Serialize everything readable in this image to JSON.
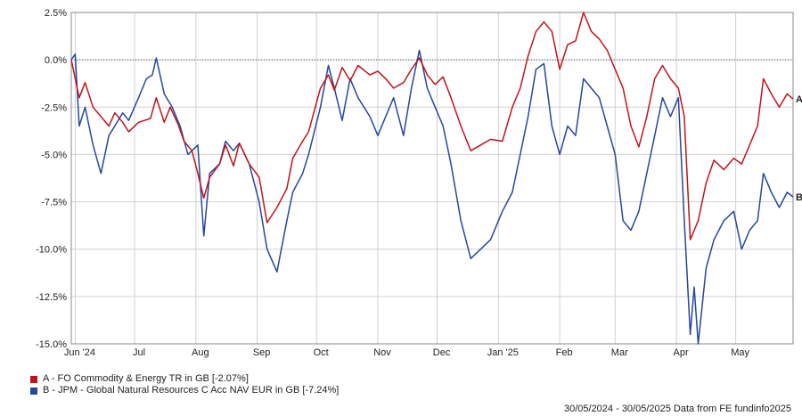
{
  "chart_data": {
    "type": "line",
    "title": "",
    "xlabel": "",
    "ylabel": "",
    "ylim": [
      -15,
      2.5
    ],
    "y_ticks": [
      "2.5%",
      "0.0%",
      "-2.5%",
      "-5.0%",
      "-7.5%",
      "-10.0%",
      "-12.5%",
      "-15.0%"
    ],
    "y_tick_values": [
      2.5,
      0,
      -2.5,
      -5,
      -7.5,
      -10,
      -12.5,
      -15
    ],
    "x_ticks": [
      "Jun '24",
      "Jul",
      "Aug",
      "Sep",
      "Oct",
      "Nov",
      "Dec",
      "Jan '25",
      "Feb",
      "Mar",
      "Apr",
      "May"
    ],
    "x_tick_dates": [
      "2024-06-01",
      "2024-07-01",
      "2024-08-01",
      "2024-09-01",
      "2024-10-01",
      "2024-11-01",
      "2024-12-01",
      "2025-01-01",
      "2025-02-01",
      "2025-03-01",
      "2025-04-01",
      "2025-05-01"
    ],
    "xlim": [
      "2024-05-30",
      "2025-05-30"
    ],
    "grid": true,
    "zero_line": true,
    "series": [
      {
        "name": "A - FO Commodity & Energy TR in GB [-2.07%]",
        "end_label": "A",
        "color": "#c0141c",
        "points": [
          [
            "2024-05-30",
            0
          ],
          [
            "2024-06-03",
            -2.0
          ],
          [
            "2024-06-06",
            -1.2
          ],
          [
            "2024-06-10",
            -2.5
          ],
          [
            "2024-06-14",
            -3.0
          ],
          [
            "2024-06-18",
            -3.5
          ],
          [
            "2024-06-21",
            -2.8
          ],
          [
            "2024-06-25",
            -3.3
          ],
          [
            "2024-06-28",
            -3.8
          ],
          [
            "2024-07-03",
            -3.3
          ],
          [
            "2024-07-09",
            -3.1
          ],
          [
            "2024-07-12",
            -2.0
          ],
          [
            "2024-07-16",
            -3.3
          ],
          [
            "2024-07-19",
            -2.5
          ],
          [
            "2024-07-23",
            -3.4
          ],
          [
            "2024-07-26",
            -4.3
          ],
          [
            "2024-07-30",
            -4.8
          ],
          [
            "2024-08-02",
            -6.0
          ],
          [
            "2024-08-05",
            -7.3
          ],
          [
            "2024-08-08",
            -6.2
          ],
          [
            "2024-08-13",
            -5.5
          ],
          [
            "2024-08-16",
            -4.5
          ],
          [
            "2024-08-20",
            -5.6
          ],
          [
            "2024-08-23",
            -4.4
          ],
          [
            "2024-08-28",
            -5.5
          ],
          [
            "2024-09-02",
            -6.2
          ],
          [
            "2024-09-06",
            -8.6
          ],
          [
            "2024-09-11",
            -7.8
          ],
          [
            "2024-09-16",
            -6.8
          ],
          [
            "2024-09-19",
            -5.2
          ],
          [
            "2024-09-24",
            -4.3
          ],
          [
            "2024-09-27",
            -3.8
          ],
          [
            "2024-10-03",
            -1.5
          ],
          [
            "2024-10-07",
            -0.8
          ],
          [
            "2024-10-10",
            -1.6
          ],
          [
            "2024-10-14",
            -0.4
          ],
          [
            "2024-10-18",
            -1.1
          ],
          [
            "2024-10-22",
            -0.3
          ],
          [
            "2024-10-28",
            -0.8
          ],
          [
            "2024-11-01",
            -0.6
          ],
          [
            "2024-11-05",
            -1.0
          ],
          [
            "2024-11-09",
            -1.5
          ],
          [
            "2024-11-14",
            -1.2
          ],
          [
            "2024-11-18",
            -0.5
          ],
          [
            "2024-11-22",
            0.1
          ],
          [
            "2024-11-26",
            -0.8
          ],
          [
            "2024-11-30",
            -1.3
          ],
          [
            "2024-12-04",
            -0.9
          ],
          [
            "2024-12-08",
            -2.0
          ],
          [
            "2024-12-13",
            -3.5
          ],
          [
            "2024-12-18",
            -4.8
          ],
          [
            "2024-12-23",
            -4.5
          ],
          [
            "2024-12-28",
            -4.2
          ],
          [
            "2025-01-03",
            -4.3
          ],
          [
            "2025-01-08",
            -2.5
          ],
          [
            "2025-01-12",
            -1.5
          ],
          [
            "2025-01-16",
            0.2
          ],
          [
            "2025-01-20",
            1.5
          ],
          [
            "2025-01-24",
            2.0
          ],
          [
            "2025-01-28",
            1.5
          ],
          [
            "2025-02-01",
            -0.5
          ],
          [
            "2025-02-05",
            0.8
          ],
          [
            "2025-02-09",
            1.0
          ],
          [
            "2025-02-13",
            2.5
          ],
          [
            "2025-02-17",
            1.5
          ],
          [
            "2025-02-21",
            1.1
          ],
          [
            "2025-02-25",
            0.5
          ],
          [
            "2025-03-01",
            -0.5
          ],
          [
            "2025-03-05",
            -1.5
          ],
          [
            "2025-03-09",
            -3.5
          ],
          [
            "2025-03-13",
            -4.6
          ],
          [
            "2025-03-17",
            -3.0
          ],
          [
            "2025-03-21",
            -1.0
          ],
          [
            "2025-03-25",
            -0.3
          ],
          [
            "2025-03-29",
            -1.0
          ],
          [
            "2025-04-02",
            -1.5
          ],
          [
            "2025-04-05",
            -3.0
          ],
          [
            "2025-04-08",
            -9.5
          ],
          [
            "2025-04-12",
            -8.5
          ],
          [
            "2025-04-16",
            -6.5
          ],
          [
            "2025-04-20",
            -5.3
          ],
          [
            "2025-04-25",
            -5.8
          ],
          [
            "2025-04-30",
            -5.2
          ],
          [
            "2025-05-04",
            -5.5
          ],
          [
            "2025-05-08",
            -4.5
          ],
          [
            "2025-05-12",
            -3.5
          ],
          [
            "2025-05-15",
            -1.0
          ],
          [
            "2025-05-19",
            -1.8
          ],
          [
            "2025-05-23",
            -2.5
          ],
          [
            "2025-05-27",
            -1.8
          ],
          [
            "2025-05-30",
            -2.07
          ]
        ]
      },
      {
        "name": "B - JPM - Global Natural Resources C Acc NAV EUR in GB [-7.24%]",
        "end_label": "B",
        "color": "#2447a0",
        "points": [
          [
            "2024-05-30",
            0
          ],
          [
            "2024-06-01",
            0.3
          ],
          [
            "2024-06-03",
            -3.5
          ],
          [
            "2024-06-06",
            -2.5
          ],
          [
            "2024-06-10",
            -4.5
          ],
          [
            "2024-06-14",
            -6.0
          ],
          [
            "2024-06-18",
            -4.0
          ],
          [
            "2024-06-21",
            -3.5
          ],
          [
            "2024-06-25",
            -2.8
          ],
          [
            "2024-06-28",
            -3.2
          ],
          [
            "2024-07-03",
            -2.0
          ],
          [
            "2024-07-07",
            -1.0
          ],
          [
            "2024-07-10",
            -0.8
          ],
          [
            "2024-07-12",
            0.1
          ],
          [
            "2024-07-16",
            -1.8
          ],
          [
            "2024-07-20",
            -2.5
          ],
          [
            "2024-07-24",
            -3.5
          ],
          [
            "2024-07-28",
            -5.0
          ],
          [
            "2024-08-02",
            -4.5
          ],
          [
            "2024-08-05",
            -9.3
          ],
          [
            "2024-08-08",
            -6.0
          ],
          [
            "2024-08-13",
            -5.5
          ],
          [
            "2024-08-16",
            -4.3
          ],
          [
            "2024-08-20",
            -4.8
          ],
          [
            "2024-08-23",
            -4.4
          ],
          [
            "2024-08-28",
            -5.5
          ],
          [
            "2024-09-02",
            -7.5
          ],
          [
            "2024-09-06",
            -10.0
          ],
          [
            "2024-09-11",
            -11.2
          ],
          [
            "2024-09-16",
            -8.5
          ],
          [
            "2024-09-19",
            -7.0
          ],
          [
            "2024-09-24",
            -6.0
          ],
          [
            "2024-09-27",
            -5.0
          ],
          [
            "2024-10-03",
            -2.5
          ],
          [
            "2024-10-07",
            -0.3
          ],
          [
            "2024-10-10",
            -1.5
          ],
          [
            "2024-10-14",
            -3.2
          ],
          [
            "2024-10-18",
            -1.0
          ],
          [
            "2024-10-22",
            -2.0
          ],
          [
            "2024-10-28",
            -3.0
          ],
          [
            "2024-11-01",
            -4.0
          ],
          [
            "2024-11-05",
            -3.0
          ],
          [
            "2024-11-09",
            -2.0
          ],
          [
            "2024-11-14",
            -4.0
          ],
          [
            "2024-11-18",
            -1.5
          ],
          [
            "2024-11-22",
            0.5
          ],
          [
            "2024-11-26",
            -1.5
          ],
          [
            "2024-11-30",
            -2.5
          ],
          [
            "2024-12-04",
            -3.5
          ],
          [
            "2024-12-08",
            -5.5
          ],
          [
            "2024-12-13",
            -8.5
          ],
          [
            "2024-12-18",
            -10.5
          ],
          [
            "2024-12-23",
            -10.0
          ],
          [
            "2024-12-28",
            -9.5
          ],
          [
            "2025-01-03",
            -8.0
          ],
          [
            "2025-01-08",
            -7.0
          ],
          [
            "2025-01-12",
            -5.0
          ],
          [
            "2025-01-16",
            -3.0
          ],
          [
            "2025-01-20",
            -0.5
          ],
          [
            "2025-01-24",
            -0.2
          ],
          [
            "2025-01-28",
            -3.5
          ],
          [
            "2025-02-01",
            -5.0
          ],
          [
            "2025-02-05",
            -3.5
          ],
          [
            "2025-02-09",
            -4.0
          ],
          [
            "2025-02-13",
            -1.0
          ],
          [
            "2025-02-17",
            -1.5
          ],
          [
            "2025-02-21",
            -2.0
          ],
          [
            "2025-02-25",
            -3.5
          ],
          [
            "2025-03-01",
            -5.0
          ],
          [
            "2025-03-05",
            -8.5
          ],
          [
            "2025-03-09",
            -9.0
          ],
          [
            "2025-03-13",
            -8.0
          ],
          [
            "2025-03-17",
            -6.0
          ],
          [
            "2025-03-21",
            -4.0
          ],
          [
            "2025-03-25",
            -2.0
          ],
          [
            "2025-03-29",
            -3.0
          ],
          [
            "2025-04-02",
            -2.0
          ],
          [
            "2025-04-05",
            -8.5
          ],
          [
            "2025-04-08",
            -14.5
          ],
          [
            "2025-04-10",
            -12.0
          ],
          [
            "2025-04-12",
            -15.0
          ],
          [
            "2025-04-16",
            -11.0
          ],
          [
            "2025-04-20",
            -9.5
          ],
          [
            "2025-04-25",
            -8.5
          ],
          [
            "2025-04-30",
            -8.0
          ],
          [
            "2025-05-04",
            -10.0
          ],
          [
            "2025-05-08",
            -9.0
          ],
          [
            "2025-05-12",
            -8.5
          ],
          [
            "2025-05-15",
            -6.0
          ],
          [
            "2025-05-19",
            -7.0
          ],
          [
            "2025-05-23",
            -7.8
          ],
          [
            "2025-05-27",
            -7.0
          ],
          [
            "2025-05-30",
            -7.24
          ]
        ]
      }
    ]
  },
  "legend": {
    "a_label": "A - FO Commodity & Energy TR in GB [-2.07%]",
    "b_label": "B - JPM - Global Natural Resources C Acc NAV EUR in GB [-7.24%]",
    "a_color": "#c0141c",
    "b_color": "#2447a0"
  },
  "footer": {
    "text": "30/05/2024 - 30/05/2025 Data from FE fundinfo2025"
  }
}
